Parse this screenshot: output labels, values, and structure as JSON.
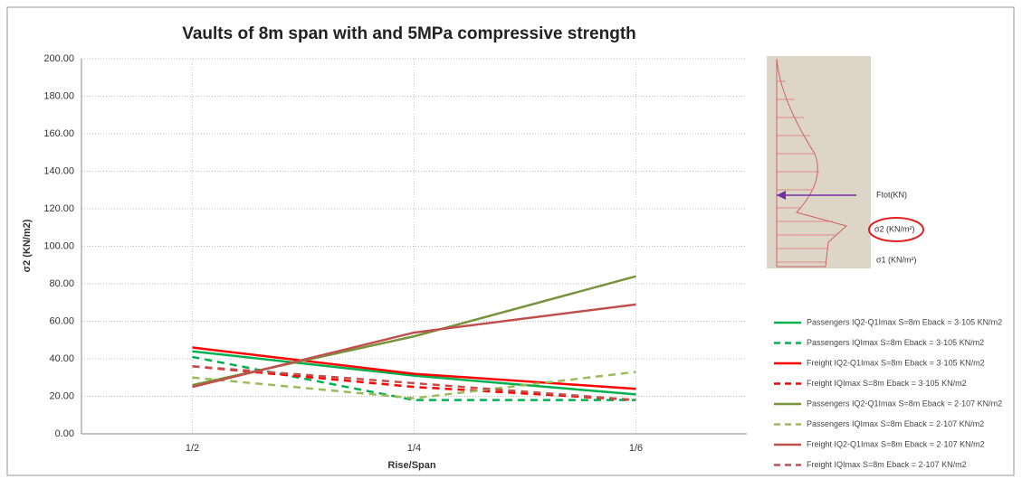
{
  "chart_data": {
    "type": "line",
    "title": "Vaults of 8m span with and 5MPa compressive strength",
    "x_label": "Rise/Span",
    "y_label": "σ2 (KN/m2)",
    "categories": [
      "1/2",
      "1/4",
      "1/6"
    ],
    "ylim": [
      0,
      200
    ],
    "yticks": [
      {
        "value": 0,
        "label": "0.00"
      },
      {
        "value": 20,
        "label": "20.00"
      },
      {
        "value": 40,
        "label": "40.00"
      },
      {
        "value": 60,
        "label": "60.00"
      },
      {
        "value": 80,
        "label": "80.00"
      },
      {
        "value": 100,
        "label": "100.00"
      },
      {
        "value": 120,
        "label": "120.00"
      },
      {
        "value": 140,
        "label": "140.00"
      },
      {
        "value": 160,
        "label": "160.00"
      },
      {
        "value": 180,
        "label": "180.00"
      },
      {
        "value": 200,
        "label": "200.00"
      }
    ],
    "grid": true,
    "legend": "right",
    "series": [
      {
        "name": "Passengers IQ2-Q1Imax S=8m Eback = 3·105 KN/m2",
        "color": "#00b050",
        "line_style": "solid",
        "values": [
          44,
          31,
          21
        ]
      },
      {
        "name": "Passengers IQImax S=8m Eback = 3·105 KN/m2",
        "color": "#00b050",
        "line_style": "dashed",
        "values": [
          41,
          18,
          18
        ]
      },
      {
        "name": "Freight IQ2-Q1Imax S=8m Eback = 3·105 KN/m2",
        "color": "#ff0000",
        "line_style": "solid",
        "values": [
          46,
          32,
          24
        ]
      },
      {
        "name": "Freight IQImax S=8m Eback = 3·105 KN/m2",
        "color": "#ff0000",
        "line_style": "dashed",
        "values": [
          36,
          25,
          18
        ]
      },
      {
        "name": "Passengers IQ2-Q1Imax S=8m Eback = 2·107 KN/m2",
        "color": "#77933c",
        "line_style": "solid",
        "values": [
          26,
          52,
          84
        ]
      },
      {
        "name": "Passengers IQImax S=8m Eback = 2·107 KN/m2",
        "color": "#9bbb59",
        "line_style": "dashed",
        "values": [
          30,
          19,
          33
        ]
      },
      {
        "name": "Freight IQ2-Q1Imax S=8m Eback = 2·107 KN/m2",
        "color": "#c0504d",
        "line_style": "solid",
        "values": [
          25,
          54,
          69
        ]
      },
      {
        "name": "Freight IQImax S=8m Eback = 2·107 KN/m2",
        "color": "#c0504d",
        "line_style": "dashed",
        "values": [
          36,
          27,
          18
        ]
      }
    ],
    "inset_labels": [
      "Ftot(KN)",
      "σ2 (KN/m²)",
      "σ1 (KN/m²)"
    ]
  }
}
